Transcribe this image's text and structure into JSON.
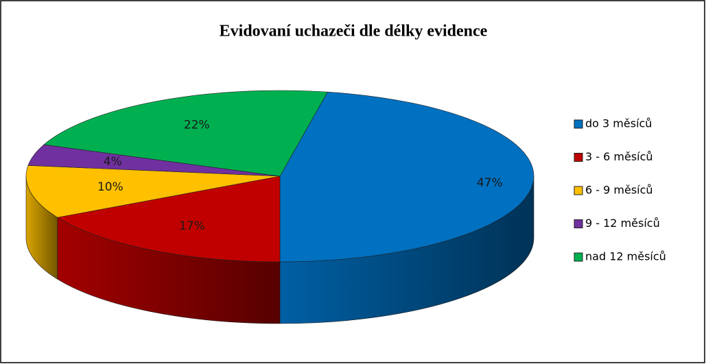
{
  "chart_data": {
    "type": "pie",
    "title": "Evidovaní uchazeči dle délky evidence",
    "categories": [
      "do 3 měsíců",
      "3 - 6 měsíců",
      "6 - 9 měsíců",
      "9 - 12 měsíců",
      "nad 12 měsíců"
    ],
    "values": [
      47,
      17,
      10,
      4,
      22
    ],
    "value_labels": [
      "47%",
      "17%",
      "10%",
      "4%",
      "22%"
    ],
    "colors": [
      "#0070c0",
      "#c00000",
      "#ffc000",
      "#7030a0",
      "#00b050"
    ],
    "legend": "right"
  }
}
